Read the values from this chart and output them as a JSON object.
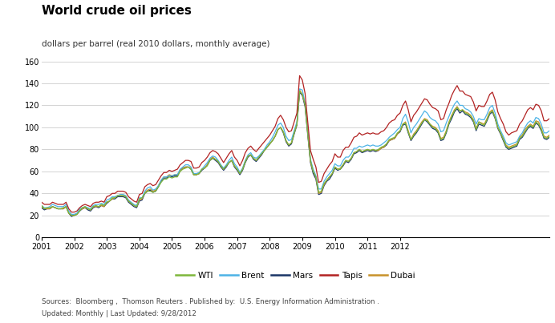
{
  "title": "World crude oil prices",
  "subtitle": "dollars per barrel (real 2010 dollars, monthly average)",
  "footer_line1": "Sources:  Bloomberg ,  Thomson Reuters . Published by:  U.S. Energy Information Administration .",
  "footer_line2": "Updated: Monthly | Last Updated: 9/28/2012",
  "ylim": [
    0,
    160
  ],
  "yticks": [
    0,
    20,
    40,
    60,
    80,
    100,
    120,
    140,
    160
  ],
  "year_ticks": [
    2001,
    2002,
    2003,
    2004,
    2005,
    2006,
    2007,
    2008,
    2009,
    2010,
    2011,
    2012
  ],
  "colors": {
    "WTI": "#7db73b",
    "Brent": "#4db3e6",
    "Mars": "#1a3566",
    "Tapis": "#b22222",
    "Dubai": "#c8922a"
  },
  "background": "#ffffff",
  "grid_color": "#cccccc",
  "series": {
    "WTI": [
      29,
      26,
      27,
      27,
      28,
      27,
      26,
      26,
      27,
      28,
      22,
      20,
      20,
      21,
      24,
      27,
      28,
      26,
      25,
      28,
      29,
      28,
      30,
      29,
      32,
      33,
      36,
      36,
      38,
      38,
      38,
      37,
      33,
      31,
      29,
      28,
      35,
      36,
      40,
      42,
      42,
      41,
      42,
      46,
      50,
      53,
      53,
      55,
      54,
      55,
      55,
      60,
      62,
      63,
      64,
      62,
      57,
      57,
      58,
      62,
      63,
      65,
      70,
      72,
      71,
      69,
      65,
      62,
      65,
      68,
      70,
      65,
      62,
      58,
      62,
      69,
      74,
      75,
      72,
      70,
      73,
      76,
      79,
      82,
      85,
      88,
      92,
      98,
      100,
      96,
      88,
      84,
      86,
      95,
      103,
      133,
      130,
      121,
      95,
      70,
      60,
      55,
      41,
      42,
      49,
      52,
      55,
      58,
      64,
      62,
      62,
      66,
      70,
      69,
      72,
      77,
      78,
      80,
      78,
      79,
      80,
      79,
      80,
      79,
      80,
      82,
      83,
      85,
      89,
      90,
      91,
      95,
      97,
      103,
      104,
      96,
      89,
      93,
      96,
      100,
      104,
      107,
      106,
      103,
      100,
      99,
      96,
      89,
      90,
      96,
      104,
      110,
      115,
      118,
      115,
      116,
      113,
      112,
      110,
      106,
      98,
      105,
      103,
      102,
      107,
      113,
      115,
      109,
      100,
      95,
      89,
      83,
      81,
      82,
      83,
      84,
      90,
      92,
      96,
      100,
      102,
      100,
      105,
      103,
      98,
      91,
      90,
      92
    ],
    "Brent": [
      29,
      27,
      27,
      28,
      30,
      29,
      28,
      28,
      28,
      30,
      24,
      21,
      21,
      22,
      26,
      27,
      28,
      27,
      26,
      29,
      30,
      30,
      31,
      30,
      34,
      35,
      37,
      37,
      38,
      39,
      39,
      38,
      34,
      32,
      30,
      29,
      36,
      36,
      42,
      45,
      46,
      43,
      44,
      47,
      52,
      55,
      55,
      56,
      56,
      57,
      57,
      62,
      64,
      66,
      66,
      64,
      58,
      58,
      59,
      62,
      65,
      68,
      72,
      74,
      73,
      70,
      66,
      63,
      66,
      70,
      73,
      67,
      64,
      59,
      63,
      70,
      75,
      77,
      73,
      72,
      74,
      77,
      80,
      84,
      87,
      91,
      96,
      102,
      104,
      100,
      92,
      88,
      89,
      97,
      105,
      135,
      134,
      122,
      97,
      71,
      62,
      56,
      44,
      44,
      51,
      55,
      58,
      61,
      67,
      65,
      65,
      70,
      73,
      73,
      76,
      81,
      81,
      83,
      82,
      83,
      84,
      83,
      84,
      83,
      83,
      84,
      86,
      88,
      91,
      93,
      95,
      98,
      100,
      108,
      112,
      105,
      95,
      100,
      103,
      107,
      111,
      115,
      113,
      109,
      107,
      106,
      103,
      96,
      97,
      104,
      110,
      116,
      121,
      124,
      120,
      120,
      117,
      116,
      114,
      110,
      103,
      108,
      107,
      107,
      112,
      118,
      120,
      113,
      103,
      97,
      92,
      86,
      84,
      85,
      86,
      87,
      92,
      95,
      100,
      104,
      106,
      104,
      109,
      108,
      103,
      95,
      95,
      97
    ],
    "Mars": [
      27,
      25,
      26,
      26,
      28,
      27,
      26,
      26,
      26,
      28,
      22,
      19,
      20,
      21,
      24,
      26,
      27,
      25,
      24,
      27,
      28,
      27,
      29,
      28,
      31,
      33,
      35,
      35,
      37,
      37,
      37,
      36,
      32,
      30,
      28,
      27,
      33,
      34,
      40,
      42,
      43,
      41,
      42,
      46,
      51,
      54,
      54,
      56,
      55,
      56,
      56,
      61,
      63,
      64,
      64,
      62,
      57,
      57,
      58,
      61,
      63,
      66,
      70,
      72,
      70,
      68,
      64,
      61,
      64,
      68,
      70,
      64,
      61,
      57,
      61,
      68,
      73,
      75,
      71,
      69,
      72,
      75,
      79,
      82,
      85,
      88,
      92,
      98,
      100,
      95,
      87,
      83,
      85,
      94,
      102,
      132,
      129,
      119,
      93,
      68,
      58,
      53,
      39,
      40,
      47,
      51,
      53,
      57,
      63,
      61,
      62,
      65,
      69,
      68,
      71,
      76,
      77,
      79,
      77,
      78,
      79,
      78,
      79,
      78,
      79,
      81,
      82,
      84,
      88,
      89,
      90,
      94,
      96,
      102,
      103,
      95,
      88,
      92,
      95,
      99,
      103,
      107,
      105,
      102,
      99,
      98,
      95,
      88,
      89,
      95,
      103,
      108,
      114,
      117,
      113,
      115,
      112,
      111,
      109,
      105,
      97,
      103,
      102,
      101,
      106,
      112,
      114,
      108,
      99,
      94,
      88,
      82,
      80,
      81,
      82,
      83,
      89,
      91,
      95,
      99,
      101,
      99,
      104,
      102,
      97,
      90,
      89,
      91
    ],
    "Tapis": [
      32,
      30,
      30,
      30,
      32,
      31,
      30,
      30,
      30,
      32,
      26,
      23,
      23,
      24,
      27,
      29,
      30,
      29,
      28,
      31,
      32,
      32,
      33,
      32,
      37,
      38,
      40,
      40,
      42,
      42,
      42,
      41,
      37,
      35,
      33,
      32,
      39,
      40,
      46,
      48,
      49,
      47,
      48,
      52,
      56,
      59,
      59,
      61,
      60,
      61,
      62,
      66,
      68,
      70,
      70,
      69,
      63,
      63,
      64,
      68,
      70,
      73,
      77,
      79,
      78,
      76,
      72,
      68,
      72,
      76,
      79,
      73,
      70,
      65,
      70,
      77,
      81,
      83,
      80,
      78,
      81,
      84,
      87,
      90,
      93,
      97,
      101,
      108,
      111,
      107,
      100,
      96,
      97,
      105,
      113,
      147,
      143,
      131,
      105,
      79,
      71,
      64,
      50,
      51,
      58,
      62,
      66,
      69,
      76,
      73,
      73,
      79,
      82,
      82,
      86,
      91,
      92,
      95,
      93,
      94,
      95,
      94,
      95,
      94,
      94,
      96,
      97,
      100,
      104,
      106,
      107,
      111,
      113,
      120,
      124,
      116,
      105,
      111,
      114,
      118,
      122,
      126,
      125,
      121,
      118,
      117,
      115,
      107,
      108,
      116,
      122,
      129,
      134,
      138,
      133,
      133,
      130,
      129,
      128,
      123,
      115,
      120,
      119,
      119,
      124,
      130,
      132,
      125,
      114,
      108,
      103,
      96,
      93,
      95,
      96,
      97,
      103,
      106,
      111,
      116,
      118,
      116,
      121,
      120,
      115,
      106,
      106,
      108
    ],
    "Dubai": [
      28,
      26,
      26,
      26,
      28,
      27,
      26,
      26,
      26,
      28,
      22,
      20,
      20,
      21,
      25,
      26,
      27,
      26,
      25,
      28,
      28,
      28,
      29,
      28,
      32,
      33,
      35,
      36,
      38,
      38,
      38,
      37,
      33,
      31,
      29,
      28,
      34,
      35,
      41,
      43,
      44,
      42,
      43,
      47,
      52,
      55,
      55,
      57,
      56,
      57,
      57,
      61,
      63,
      64,
      64,
      63,
      57,
      57,
      58,
      62,
      63,
      66,
      71,
      73,
      71,
      69,
      65,
      62,
      65,
      68,
      70,
      65,
      62,
      58,
      62,
      69,
      74,
      75,
      72,
      70,
      73,
      76,
      79,
      82,
      85,
      88,
      92,
      98,
      100,
      96,
      88,
      84,
      86,
      95,
      103,
      134,
      130,
      121,
      95,
      69,
      60,
      55,
      40,
      41,
      48,
      52,
      55,
      58,
      64,
      62,
      63,
      66,
      70,
      69,
      72,
      77,
      78,
      80,
      78,
      79,
      80,
      79,
      80,
      79,
      79,
      81,
      82,
      85,
      88,
      89,
      90,
      94,
      97,
      103,
      105,
      97,
      89,
      94,
      97,
      101,
      105,
      108,
      107,
      103,
      101,
      100,
      97,
      90,
      91,
      97,
      105,
      111,
      116,
      119,
      115,
      116,
      114,
      113,
      111,
      107,
      99,
      105,
      104,
      103,
      108,
      114,
      116,
      109,
      100,
      95,
      90,
      84,
      82,
      83,
      84,
      85,
      91,
      93,
      98,
      101,
      103,
      101,
      106,
      105,
      99,
      92,
      91,
      93
    ]
  }
}
